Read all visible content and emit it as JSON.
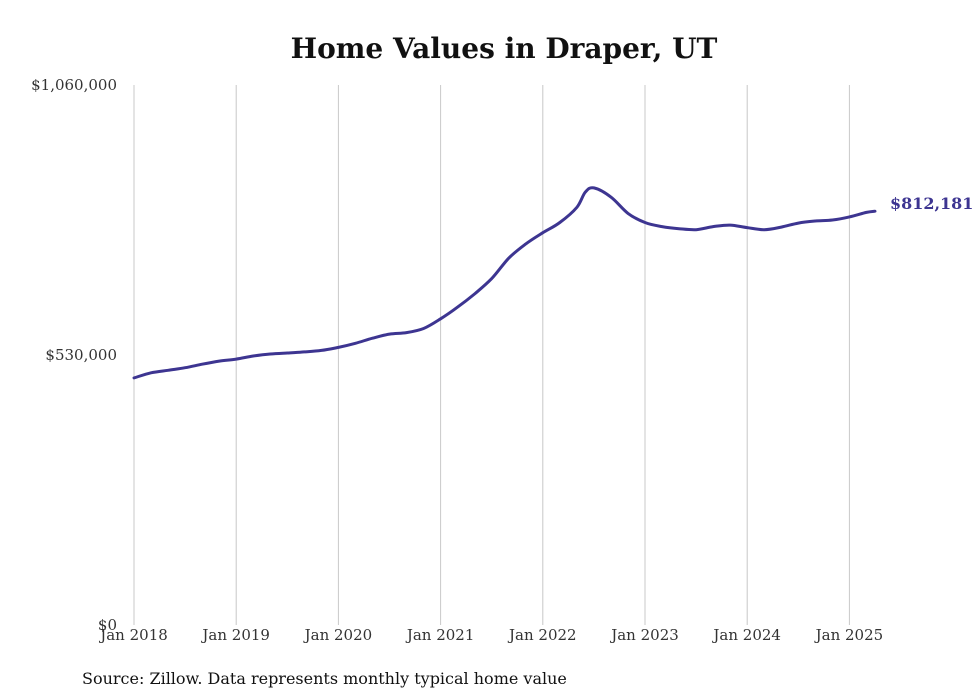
{
  "chart_data": {
    "type": "line",
    "title": "Home Values in Draper, UT",
    "xlabel": "",
    "ylabel": "",
    "source_note": "Source: Zillow. Data represents monthly typical home value",
    "y_ticks": [
      {
        "value": 0,
        "label": "$0"
      },
      {
        "value": 530000,
        "label": "$530,000"
      },
      {
        "value": 1060000,
        "label": "$1,060,000"
      }
    ],
    "x_ticks": [
      {
        "value": "2018-01",
        "label": "Jan 2018"
      },
      {
        "value": "2019-01",
        "label": "Jan 2019"
      },
      {
        "value": "2020-01",
        "label": "Jan 2020"
      },
      {
        "value": "2021-01",
        "label": "Jan 2021"
      },
      {
        "value": "2022-01",
        "label": "Jan 2022"
      },
      {
        "value": "2023-01",
        "label": "Jan 2023"
      },
      {
        "value": "2024-01",
        "label": "Jan 2024"
      },
      {
        "value": "2025-01",
        "label": "Jan 2025"
      }
    ],
    "ylim": [
      0,
      1060000
    ],
    "xlim": [
      "2018-01",
      "2025-04"
    ],
    "grid": {
      "vertical": true,
      "horizontal": false
    },
    "colors": {
      "series": "#3d3591",
      "grid": "#c8c8c8"
    },
    "end_label": "$812,181",
    "series": [
      {
        "name": "",
        "x": [
          "2018-01",
          "2018-03",
          "2018-05",
          "2018-07",
          "2018-09",
          "2018-11",
          "2019-01",
          "2019-03",
          "2019-05",
          "2019-07",
          "2019-09",
          "2019-11",
          "2020-01",
          "2020-03",
          "2020-05",
          "2020-07",
          "2020-09",
          "2020-11",
          "2021-01",
          "2021-03",
          "2021-05",
          "2021-07",
          "2021-09",
          "2021-11",
          "2022-01",
          "2022-03",
          "2022-05",
          "2022-06",
          "2022-07",
          "2022-09",
          "2022-11",
          "2023-01",
          "2023-03",
          "2023-05",
          "2023-07",
          "2023-09",
          "2023-11",
          "2024-01",
          "2024-03",
          "2024-05",
          "2024-07",
          "2024-09",
          "2024-11",
          "2025-01",
          "2025-03",
          "2025-04"
        ],
        "values": [
          485000,
          495000,
          500000,
          505000,
          512000,
          518000,
          522000,
          528000,
          532000,
          534000,
          536000,
          539000,
          545000,
          553000,
          563000,
          571000,
          574000,
          582000,
          601000,
          624000,
          650000,
          680000,
          720000,
          748000,
          770000,
          790000,
          820000,
          850000,
          858000,
          840000,
          808000,
          790000,
          782000,
          778000,
          776000,
          782000,
          785000,
          780000,
          776000,
          781000,
          789000,
          793000,
          795000,
          801000,
          810000,
          812181
        ]
      }
    ]
  }
}
